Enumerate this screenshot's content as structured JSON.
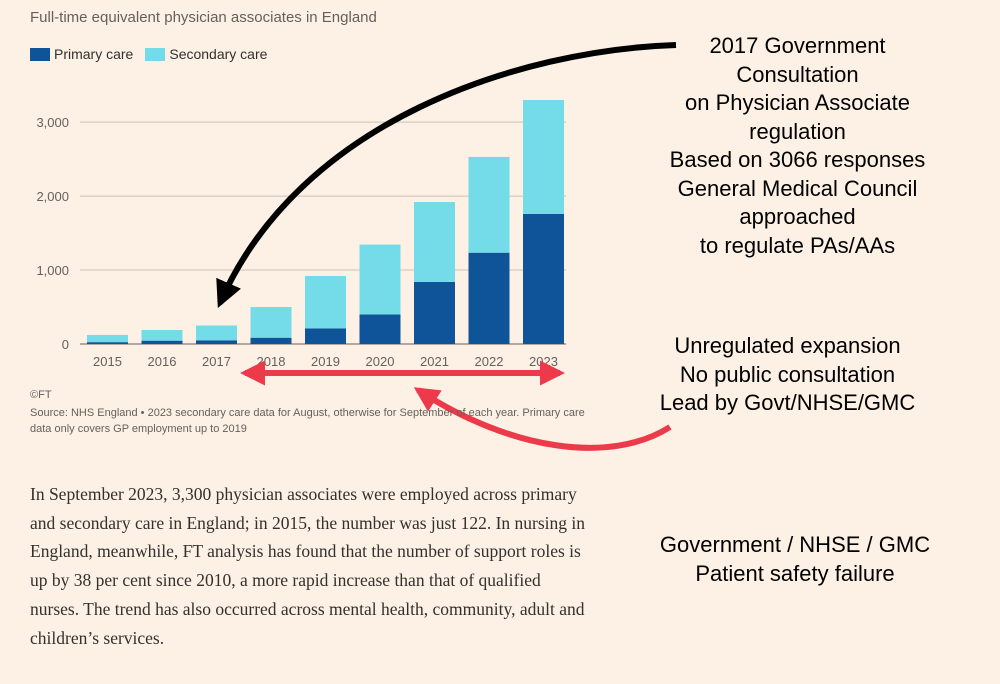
{
  "chart_data": {
    "type": "bar",
    "stacked": true,
    "title": "Full-time equivalent physician associates in England",
    "categories": [
      "2015",
      "2016",
      "2017",
      "2018",
      "2019",
      "2020",
      "2021",
      "2022",
      "2023"
    ],
    "series": [
      {
        "name": "Primary care",
        "color": "#0f5499",
        "values": [
          25,
          45,
          50,
          85,
          210,
          400,
          840,
          1235,
          1760
        ]
      },
      {
        "name": "Secondary care",
        "color": "#74dbe8",
        "values": [
          97,
          145,
          200,
          415,
          710,
          945,
          1080,
          1295,
          1540
        ]
      }
    ],
    "ylim": [
      0,
      3300
    ],
    "yticks": [
      0,
      1000,
      2000,
      3000
    ],
    "ytick_labels": [
      "0",
      "1,000",
      "2,000",
      "3,000"
    ],
    "xlabel": "",
    "ylabel": "",
    "grid": true,
    "legend": "top-left",
    "credit": "©FT",
    "source": "Source: NHS England • 2023 secondary care data for August, otherwise for September of each year. Primary care data only covers GP employment up to 2019"
  },
  "article": {
    "paragraph": "In September 2023, 3,300 physician associates were employed across primary and secondary care in England; in 2015, the number was just 122. In nursing in England, meanwhile, FT analysis has found that the number of support roles is up by 38 per cent since 2010, a more rapid increase than that of qualified nurses. The trend has also occurred across mental health, community, adult and children’s services."
  },
  "annotations": {
    "consultation": [
      "2017 Government",
      "Consultation",
      "on Physician Associate",
      "regulation",
      "Based on 3066 responses",
      "General Medical Council",
      "approached",
      "to regulate PAs/AAs"
    ],
    "expansion": [
      "Unregulated expansion",
      "No public consultation",
      "Lead by Govt/NHSE/GMC"
    ],
    "failure": [
      "Government / NHSE / GMC",
      "Patient safety failure"
    ]
  },
  "colors": {
    "background": "#fdf1e6",
    "black_arrow": "#000000",
    "red_arrow": "#ec3a4b"
  }
}
